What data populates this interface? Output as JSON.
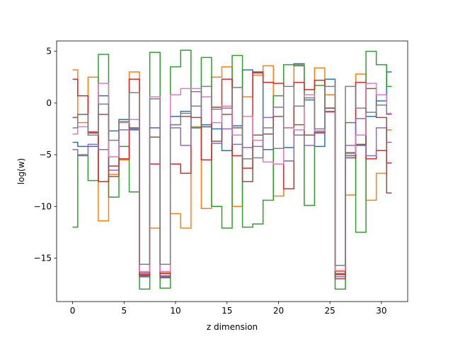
{
  "chart_data": {
    "type": "line",
    "step": "mid",
    "title": "",
    "xlabel": "z dimension",
    "ylabel": "log(w)",
    "xlim": [
      -1.55,
      32.55
    ],
    "ylim": [
      -19.2,
      6.0
    ],
    "xticks": [
      0,
      5,
      10,
      15,
      20,
      25,
      30
    ],
    "yticks": [
      -15,
      -10,
      -5,
      0,
      5
    ],
    "ytick_labels": [
      "−15",
      "−10",
      "−5",
      "0",
      "5"
    ],
    "grid": false,
    "legend": "none",
    "x": [
      0,
      1,
      2,
      3,
      4,
      5,
      6,
      7,
      8,
      9,
      10,
      11,
      12,
      13,
      14,
      15,
      16,
      17,
      18,
      19,
      20,
      21,
      22,
      23,
      24,
      25,
      26,
      27,
      28,
      29,
      30,
      31
    ],
    "series": [
      {
        "color": "#1f77b4",
        "values": [
          -3.8,
          -4.2,
          -4.2,
          0.7,
          -2.7,
          -1.6,
          -2.6,
          -16.8,
          -2.4,
          -16.8,
          -1.3,
          -0.8,
          -2.4,
          -2.1,
          -2.5,
          -4.6,
          -2.2,
          3.2,
          2.9,
          -4.5,
          -4.4,
          -4.3,
          3.8,
          0.3,
          -4.2,
          2.3,
          -16.5,
          -5.1,
          -4.1,
          -1.3,
          0.2,
          3.0
        ]
      },
      {
        "color": "#ff7f0e",
        "values": [
          3.2,
          -1.9,
          2.5,
          -11.4,
          -6.9,
          -5.5,
          3.0,
          -16.5,
          -12.1,
          -16.4,
          -10.7,
          -12.1,
          -2.3,
          -10.2,
          2.5,
          3.5,
          -10.0,
          0.6,
          2.7,
          3.6,
          -9.0,
          -5.6,
          3.7,
          -3.1,
          3.4,
          0.8,
          -16.3,
          -8.9,
          2.8,
          -9.4,
          -6.8,
          -2.6
        ]
      },
      {
        "color": "#2ca02c",
        "values": [
          -12.0,
          -5.0,
          -7.5,
          4.7,
          -9.1,
          -4.2,
          -8.6,
          -18.0,
          4.9,
          -17.9,
          3.5,
          5.1,
          -2.4,
          4.4,
          -10.0,
          -12.1,
          4.6,
          -12.0,
          -11.7,
          -9.4,
          0.7,
          3.7,
          3.6,
          -9.9,
          1.7,
          -0.5,
          -18.0,
          -1.9,
          -12.5,
          5.0,
          3.7,
          1.6
        ]
      },
      {
        "color": "#d62728",
        "values": [
          2.3,
          0.7,
          -2.8,
          -7.6,
          -6.1,
          -5.4,
          2.3,
          -16.6,
          -5.9,
          -16.5,
          -5.9,
          -6.8,
          1.1,
          -5.5,
          -0.4,
          2.3,
          -5.1,
          -6.3,
          3.0,
          2.0,
          1.9,
          -8.3,
          2.0,
          1.3,
          2.2,
          -0.8,
          -16.6,
          -5.3,
          2.0,
          -5.4,
          -4.6,
          -5.8
        ]
      },
      {
        "color": "#9467bd",
        "values": [
          -4.5,
          -5.1,
          -4.0,
          -4.5,
          -6.5,
          -2.6,
          -2.5,
          -16.4,
          -2.4,
          -16.7,
          -2.4,
          -4.1,
          1.1,
          -2.3,
          -3.9,
          -2.5,
          -4.0,
          -4.3,
          -4.2,
          -1.4,
          -0.4,
          -5.6,
          -3.1,
          -4.1,
          -2.8,
          -0.5,
          -16.8,
          -4.1,
          -1.5,
          -5.1,
          -2.4,
          -3.8
        ]
      },
      {
        "color": "#8c564b",
        "values": [
          -1.4,
          -1.1,
          -2.9,
          -1.1,
          -7.1,
          -1.8,
          -2.4,
          -16.7,
          -3.3,
          -16.9,
          -2.1,
          -1.3,
          -1.4,
          -2.3,
          -3.7,
          -1.1,
          -2.4,
          -7.6,
          -3.1,
          -3.0,
          -1.3,
          -2.4,
          -2.1,
          -3.1,
          -2.9,
          -0.5,
          -17.0,
          -4.8,
          -4.0,
          1.4,
          -1.4,
          -8.7
        ]
      },
      {
        "color": "#e377c2",
        "values": [
          -3.0,
          -2.3,
          -3.1,
          1.9,
          -5.2,
          -1.9,
          -1.6,
          -16.3,
          0.6,
          -16.3,
          0.8,
          1.4,
          1.4,
          0.6,
          -1.9,
          -0.3,
          -3.1,
          -1.3,
          -3.6,
          -5.7,
          -5.9,
          -2.4,
          -2.6,
          0.8,
          -2.7,
          -0.9,
          -16.2,
          -4.9,
          -3.1,
          1.9,
          0.8,
          -1.0
        ]
      },
      {
        "color": "#7f7f7f",
        "values": [
          -2.4,
          -1.1,
          -3.1,
          -0.1,
          -3.6,
          -1.8,
          1.0,
          -15.6,
          0.4,
          -15.6,
          -2.1,
          -1.0,
          -0.3,
          1.6,
          -0.6,
          -0.5,
          1.5,
          -5.4,
          -5.3,
          -2.4,
          -4.4,
          1.6,
          -0.3,
          0.5,
          -2.5,
          1.6,
          -15.7,
          1.6,
          -0.5,
          -0.9,
          -0.2,
          -1.1
        ]
      }
    ]
  }
}
